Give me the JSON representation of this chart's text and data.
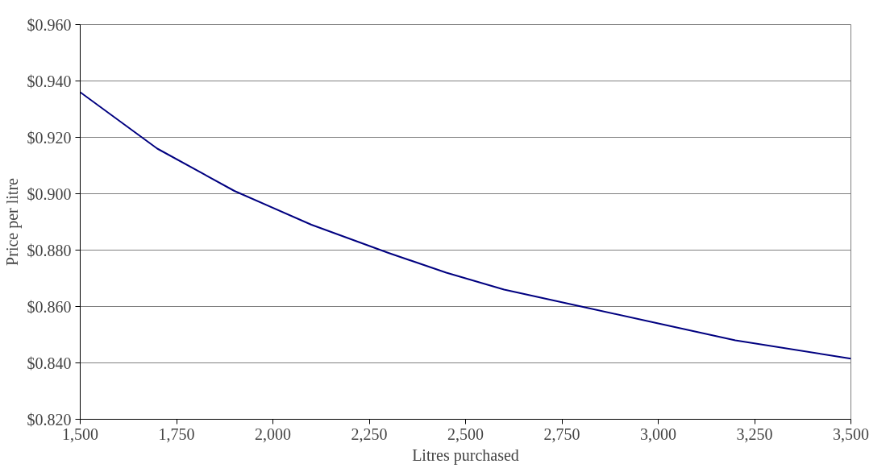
{
  "chart_data": {
    "type": "line",
    "xlabel": "Litres purchased",
    "ylabel": "Price per litre",
    "x": [
      1500,
      1700,
      1900,
      2100,
      2300,
      2450,
      2600,
      2800,
      3000,
      3200,
      3500
    ],
    "series": [
      {
        "color": "#000080",
        "values": [
          0.936,
          0.916,
          0.901,
          0.889,
          0.879,
          0.872,
          0.866,
          0.86,
          0.854,
          0.848,
          0.8415
        ]
      }
    ],
    "xlim": [
      1500,
      3500
    ],
    "ylim": [
      0.82,
      0.96
    ],
    "xticks": [
      {
        "value": 1500,
        "label": "1,500"
      },
      {
        "value": 1750,
        "label": "1,750"
      },
      {
        "value": 2000,
        "label": "2,000"
      },
      {
        "value": 2250,
        "label": "2,250"
      },
      {
        "value": 2500,
        "label": "2,500"
      },
      {
        "value": 2750,
        "label": "2,750"
      },
      {
        "value": 3000,
        "label": "3,000"
      },
      {
        "value": 3250,
        "label": "3,250"
      },
      {
        "value": 3500,
        "label": "3,500"
      }
    ],
    "yticks": [
      {
        "value": 0.82,
        "label": "$0.820"
      },
      {
        "value": 0.84,
        "label": "$0.840"
      },
      {
        "value": 0.86,
        "label": "$0.860"
      },
      {
        "value": 0.88,
        "label": "$0.880"
      },
      {
        "value": 0.9,
        "label": "$0.900"
      },
      {
        "value": 0.92,
        "label": "$0.920"
      },
      {
        "value": 0.94,
        "label": "$0.940"
      },
      {
        "value": 0.96,
        "label": "$0.960"
      }
    ],
    "grid": "y",
    "line_style": "solid"
  }
}
